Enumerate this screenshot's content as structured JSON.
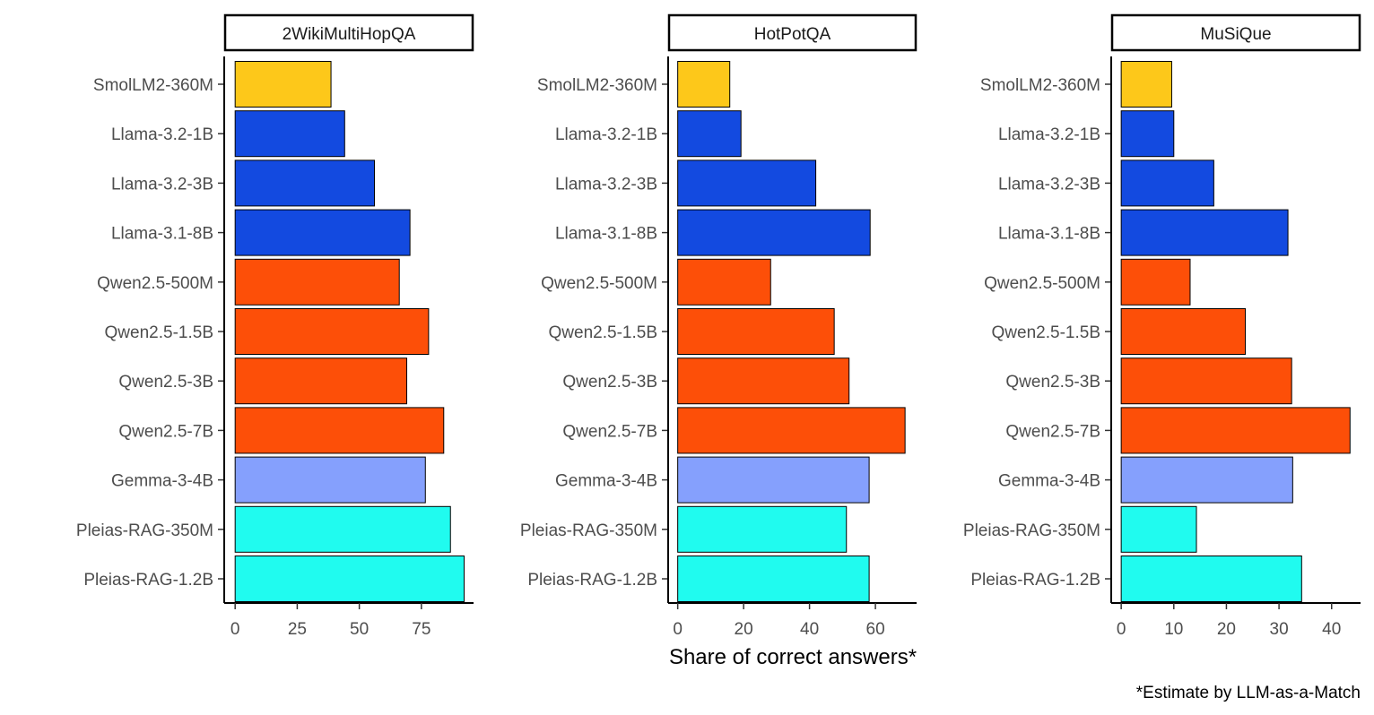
{
  "chart_data": {
    "type": "bar",
    "orientation": "horizontal",
    "x_axis_title": "Share of correct answers*",
    "caption": "*Estimate by LLM-as-a-Match",
    "models": [
      "SmolLM2-360M",
      "Llama-3.2-1B",
      "Llama-3.2-3B",
      "Llama-3.1-8B",
      "Qwen2.5-500M",
      "Qwen2.5-1.5B",
      "Qwen2.5-3B",
      "Qwen2.5-7B",
      "Gemma-3-4B",
      "Pleias-RAG-350M",
      "Pleias-RAG-1.2B"
    ],
    "colors": [
      "#fdc81a",
      "#134ae0",
      "#134ae0",
      "#134ae0",
      "#fd4f08",
      "#fd4f08",
      "#fd4f08",
      "#fd4f08",
      "#85a0fd",
      "#20fbef",
      "#20fbef"
    ],
    "panels": [
      {
        "title": "2WikiMultiHopQA",
        "xlim": [
          -4.4,
          96
        ],
        "ticks": [
          0,
          25,
          50,
          75
        ],
        "values": [
          38.6,
          44.1,
          56.1,
          70.4,
          66.1,
          77.9,
          69.1,
          84.0,
          76.6,
          86.7,
          92.2
        ]
      },
      {
        "title": "HotPotQA",
        "xlim": [
          -2.9,
          72.5
        ],
        "ticks": [
          0,
          20,
          40,
          60
        ],
        "values": [
          15.8,
          19.2,
          41.9,
          58.4,
          28.2,
          47.5,
          52.0,
          69.0,
          58.1,
          51.2,
          58.1
        ]
      },
      {
        "title": "MuSiQue",
        "xlim": [
          -1.9,
          45.5
        ],
        "ticks": [
          0,
          10,
          20,
          30,
          40
        ],
        "values": [
          9.6,
          10.0,
          17.6,
          31.7,
          13.1,
          23.6,
          32.4,
          43.5,
          32.6,
          14.3,
          34.3
        ]
      }
    ]
  }
}
